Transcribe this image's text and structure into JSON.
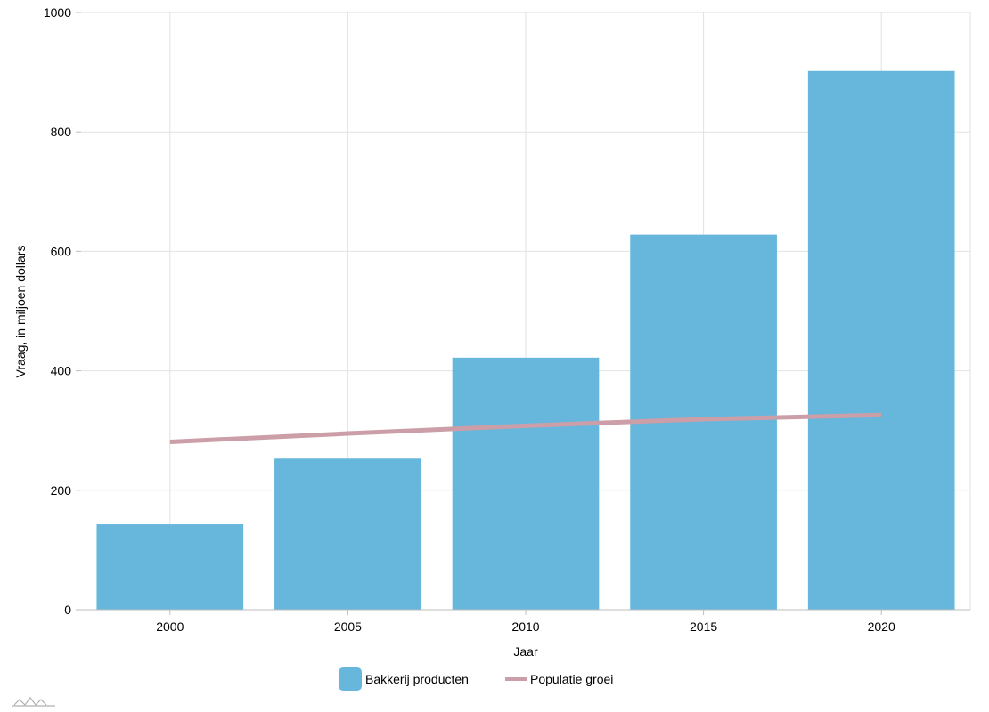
{
  "chart_data": {
    "type": "bar",
    "categories": [
      "2000",
      "2005",
      "2010",
      "2015",
      "2020"
    ],
    "series": [
      {
        "name": "Bakkerij producten",
        "kind": "bar",
        "values": [
          143,
          253,
          422,
          628,
          902
        ],
        "color": "#67b7dc"
      },
      {
        "name": "Populatie groei",
        "kind": "line",
        "values": [
          281,
          295,
          308,
          319,
          326
        ],
        "color": "#cc9ea7"
      }
    ],
    "xlabel": "Jaar",
    "ylabel": "Vraag, in miljoen dollars",
    "ylim": [
      0,
      1000
    ],
    "yticks": [
      0,
      200,
      400,
      600,
      800,
      1000
    ],
    "grid": true,
    "legend_position": "bottom"
  }
}
